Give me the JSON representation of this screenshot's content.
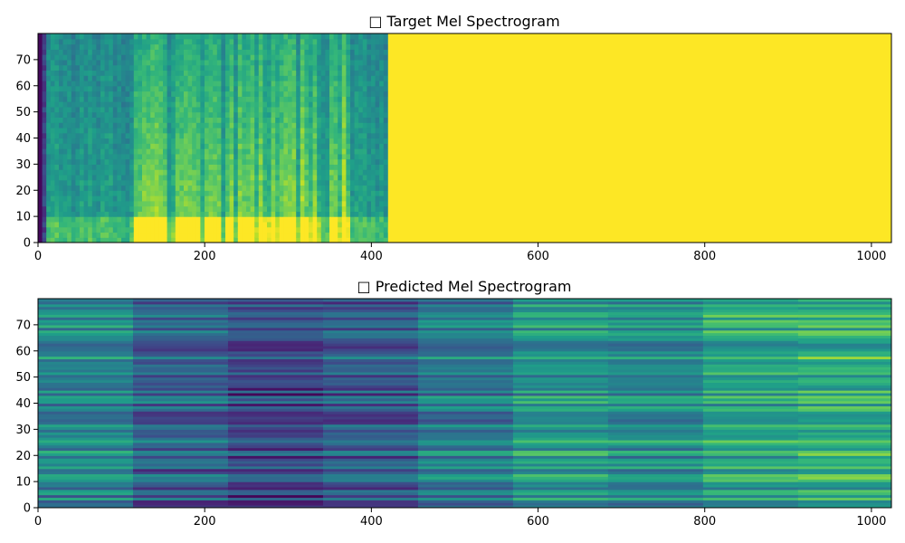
{
  "chart_data": [
    {
      "type": "heatmap",
      "title": "□ Target Mel Spectrogram",
      "xlabel": "",
      "ylabel": "",
      "xlim": [
        0,
        1024
      ],
      "ylim": [
        0,
        80
      ],
      "x_ticks": [
        0,
        200,
        400,
        600,
        800,
        1000
      ],
      "y_ticks": [
        0,
        10,
        20,
        30,
        40,
        50,
        60,
        70
      ],
      "colormap": "viridis",
      "data_frames": 420,
      "padding_value_color": "#fde725",
      "grid": false
    },
    {
      "type": "heatmap",
      "title": "□ Predicted Mel Spectrogram",
      "xlabel": "",
      "ylabel": "",
      "xlim": [
        0,
        1024
      ],
      "ylim": [
        0,
        80
      ],
      "x_ticks": [
        0,
        200,
        400,
        600,
        800,
        1000
      ],
      "y_ticks": [
        0,
        10,
        20,
        30,
        40,
        50,
        60,
        70
      ],
      "colormap": "viridis",
      "segment_boundaries": [
        0,
        114,
        228,
        342,
        456,
        570,
        684,
        798,
        912,
        1024
      ],
      "grid": false
    }
  ]
}
